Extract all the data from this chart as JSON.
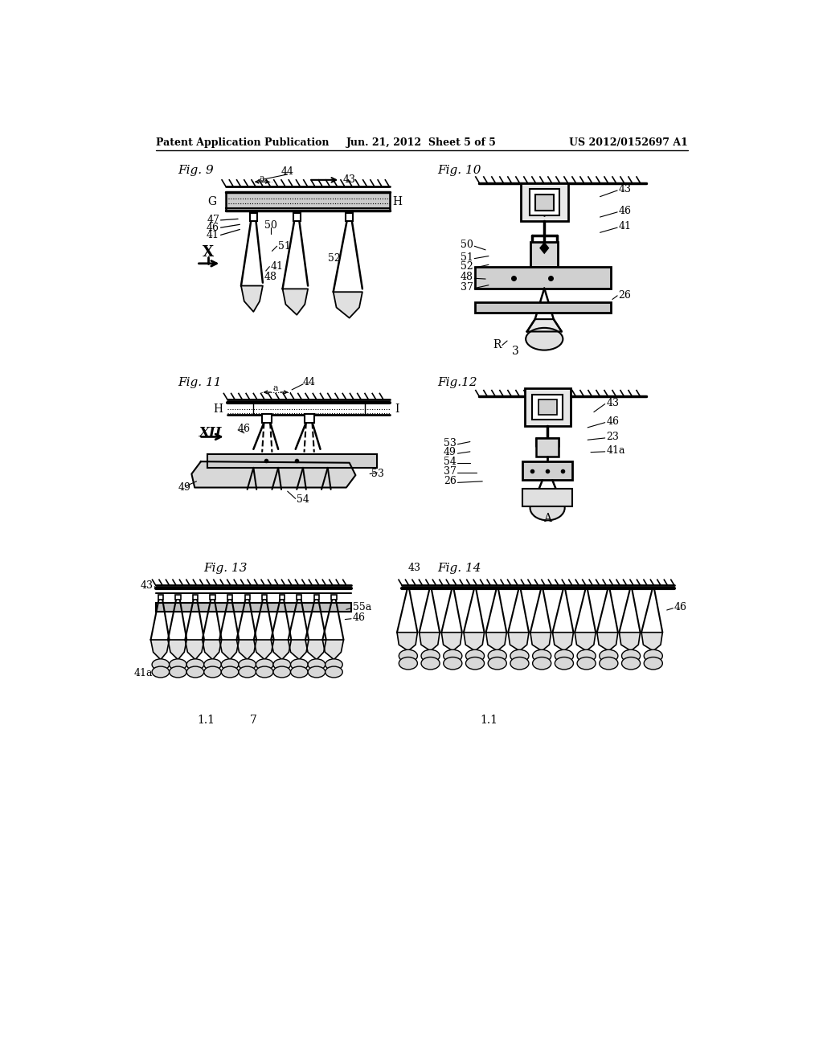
{
  "header_left": "Patent Application Publication",
  "header_mid": "Jun. 21, 2012  Sheet 5 of 5",
  "header_right": "US 2012/0152697 A1",
  "bg_color": "#ffffff",
  "line_color": "#000000",
  "gray_light": "#d8d8d8",
  "gray_med": "#b0b0b0",
  "gray_dark": "#888888"
}
